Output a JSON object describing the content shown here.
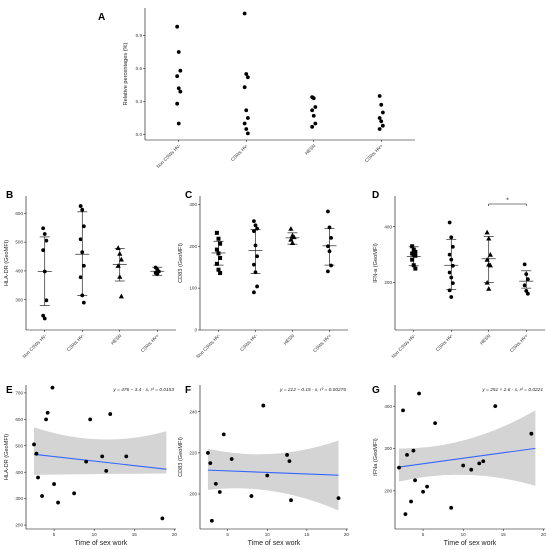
{
  "chart_data": [
    {
      "id": "A",
      "type": "scatter",
      "panel_label": "A",
      "ylabel": "Relative percentages (%)",
      "categories": [
        "Non CSWs HV-",
        "CSWs HV-",
        "HESN",
        "CSWs HV+"
      ],
      "yticks": [
        "0.0",
        "0.3",
        "0.6",
        "0.9"
      ],
      "ytick_values": [
        0,
        0.3,
        0.6,
        0.9
      ],
      "ylim": [
        -0.05,
        1.15
      ],
      "groups": [
        [
          0.98,
          0.75,
          0.58,
          0.53,
          0.42,
          0.39,
          0.28,
          0.1
        ],
        [
          1.1,
          0.55,
          0.52,
          0.43,
          0.22,
          0.15,
          0.1,
          0.05,
          0.01
        ],
        [
          0.34,
          0.33,
          0.25,
          0.22,
          0.17,
          0.1,
          0.07
        ],
        [
          0.35,
          0.27,
          0.2,
          0.15,
          0.12,
          0.08,
          0.05
        ]
      ]
    },
    {
      "id": "B",
      "type": "scatter",
      "panel_label": "B",
      "ylabel": "HLA-DR (GeoMFI)",
      "categories": [
        "Non CSWs HV-",
        "CSWs HV-",
        "HESN",
        "CSWs HV+"
      ],
      "yticks": [
        "300",
        "400",
        "500",
        "600"
      ],
      "ytick_values": [
        300,
        400,
        500,
        600
      ],
      "ylim": [
        195,
        660
      ],
      "groups": [
        [
          548,
          528,
          505,
          472,
          398,
          298,
          245,
          235
        ],
        [
          625,
          612,
          555,
          510,
          465,
          418,
          378,
          315,
          290
        ],
        [
          480,
          460,
          440,
          418,
          380,
          312
        ],
        [
          412,
          405,
          398,
          393,
          389
        ]
      ],
      "means": [
        398,
        458,
        422,
        399
      ],
      "err": [
        [
          280,
          518
        ],
        [
          315,
          605
        ],
        [
          365,
          478
        ],
        [
          385,
          413
        ]
      ],
      "markers": [
        "circle",
        "circle",
        "triangle",
        "circle"
      ]
    },
    {
      "id": "C",
      "type": "scatter",
      "panel_label": "C",
      "ylabel": "CD83 (GeoMFI)",
      "categories": [
        "Non CSWs HV-",
        "CSWs HV-",
        "HESN",
        "CSWs HV+"
      ],
      "yticks": [
        "0",
        "100",
        "200",
        "300"
      ],
      "ytick_values": [
        0,
        100,
        200,
        300
      ],
      "ylim": [
        0,
        320
      ],
      "groups": [
        [
          232,
          218,
          206,
          192,
          183,
          172,
          158,
          144,
          136
        ],
        [
          260,
          250,
          242,
          236,
          202,
          176,
          156,
          138,
          104,
          90
        ],
        [
          242,
          226,
          222,
          216,
          208
        ],
        [
          283,
          245,
          220,
          200,
          188,
          154,
          140
        ]
      ],
      "means": [
        184,
        190,
        220,
        201
      ],
      "err": [
        [
          155,
          212
        ],
        [
          135,
          240
        ],
        [
          205,
          232
        ],
        [
          155,
          242
        ]
      ],
      "markers": [
        "square",
        "circle",
        "triangle",
        "circle"
      ]
    },
    {
      "id": "D",
      "type": "scatter",
      "panel_label": "D",
      "ylabel": "IFN-a (GeoMFI)",
      "categories": [
        "Non CSWs HV-",
        "CSWs HV-",
        "HESN",
        "CSWs HV+"
      ],
      "yticks": [
        "200",
        "400"
      ],
      "ytick_values": [
        200,
        400
      ],
      "ylim": [
        30,
        510
      ],
      "significance": "*",
      "groups": [
        [
          330,
          318,
          310,
          304,
          300,
          296,
          282,
          262,
          250
        ],
        [
          415,
          362,
          328,
          300,
          282,
          260,
          236,
          218,
          198,
          172,
          148
        ],
        [
          380,
          358,
          300,
          282,
          265,
          262,
          200,
          178
        ],
        [
          265,
          230,
          212,
          190,
          170,
          160
        ]
      ],
      "means": [
        293,
        262,
        285,
        205
      ],
      "err": [
        [
          260,
          328
        ],
        [
          175,
          355
        ],
        [
          200,
          365
        ],
        [
          180,
          242
        ]
      ],
      "markers": [
        "square",
        "circle",
        "triangle",
        "circle"
      ]
    },
    {
      "id": "E",
      "type": "scatter",
      "panel_label": "E",
      "xlabel": "Time of sex work",
      "ylabel": "HLA-DR (GeoMFI)",
      "equation": "y = 476 − 3.4 · x,  r² = 0.0153",
      "xticks": [
        "5",
        "10",
        "15",
        "20"
      ],
      "xtick_values": [
        5,
        10,
        15,
        20
      ],
      "xlim": [
        1.5,
        20.2
      ],
      "yticks": [
        "200",
        "300",
        "400",
        "500",
        "600",
        "700"
      ],
      "ytick_values": [
        200,
        300,
        400,
        500,
        600,
        700
      ],
      "ylim": [
        185,
        730
      ],
      "x": [
        2.5,
        2.8,
        3,
        3.5,
        4,
        4.2,
        4.8,
        5,
        5.5,
        7.5,
        9,
        9.5,
        11,
        11.5,
        12,
        14,
        18.5
      ],
      "y": [
        505,
        470,
        380,
        310,
        600,
        625,
        720,
        355,
        285,
        320,
        440,
        600,
        460,
        405,
        620,
        460,
        225
      ],
      "fit": {
        "intercept": 476,
        "slope": -3.4
      },
      "band_lower_ends": [
        390,
        395
      ],
      "band_upper_ends": [
        570,
        555
      ]
    },
    {
      "id": "F",
      "type": "scatter",
      "panel_label": "F",
      "xlabel": "Time of sex work",
      "ylabel": "CD83 (GeoMFI)",
      "equation": "y = 212 − 0.15 · x,  r² = 0.00276",
      "xticks": [
        "5",
        "10",
        "15",
        "20"
      ],
      "xtick_values": [
        5,
        10,
        15,
        20
      ],
      "xlim": [
        1.5,
        20.2
      ],
      "yticks": [
        "200",
        "220",
        "240"
      ],
      "ytick_values": [
        200,
        220,
        240
      ],
      "ylim": [
        183,
        253
      ],
      "x": [
        2.5,
        2.8,
        3,
        3.5,
        4,
        4.5,
        5.5,
        8,
        9.5,
        10,
        12.5,
        12.8,
        13,
        19
      ],
      "y": [
        220,
        215,
        187,
        205,
        201,
        229,
        217,
        199,
        243,
        209,
        219,
        216,
        197,
        198
      ],
      "fit": {
        "intercept": 212,
        "slope": -0.15
      },
      "band_lower_ends": [
        202,
        192
      ],
      "band_upper_ends": [
        222,
        226
      ]
    },
    {
      "id": "G",
      "type": "scatter",
      "panel_label": "G",
      "xlabel": "Time of sex work",
      "ylabel": "IFNa (GeoMFI)",
      "equation": "y = 251 + 2.6 · x,  r² = 0.0221",
      "xticks": [
        "5",
        "10",
        "15",
        "20"
      ],
      "xtick_values": [
        5,
        10,
        15,
        20
      ],
      "xlim": [
        1.5,
        20.2
      ],
      "yticks": [
        "200",
        "300",
        "400"
      ],
      "ytick_values": [
        200,
        300,
        400
      ],
      "ylim": [
        110,
        450
      ],
      "x": [
        2,
        2.5,
        2.8,
        3,
        3.5,
        3.8,
        4,
        4.5,
        5,
        5.5,
        6.5,
        8.5,
        10,
        11,
        12,
        12.5,
        14,
        18.5
      ],
      "y": [
        255,
        390,
        145,
        285,
        175,
        295,
        225,
        430,
        198,
        210,
        360,
        160,
        260,
        250,
        265,
        270,
        400,
        335
      ],
      "fit": {
        "intercept": 251,
        "slope": 2.6
      },
      "band_lower_ends": [
        222,
        212
      ],
      "band_upper_ends": [
        300,
        390
      ]
    }
  ]
}
